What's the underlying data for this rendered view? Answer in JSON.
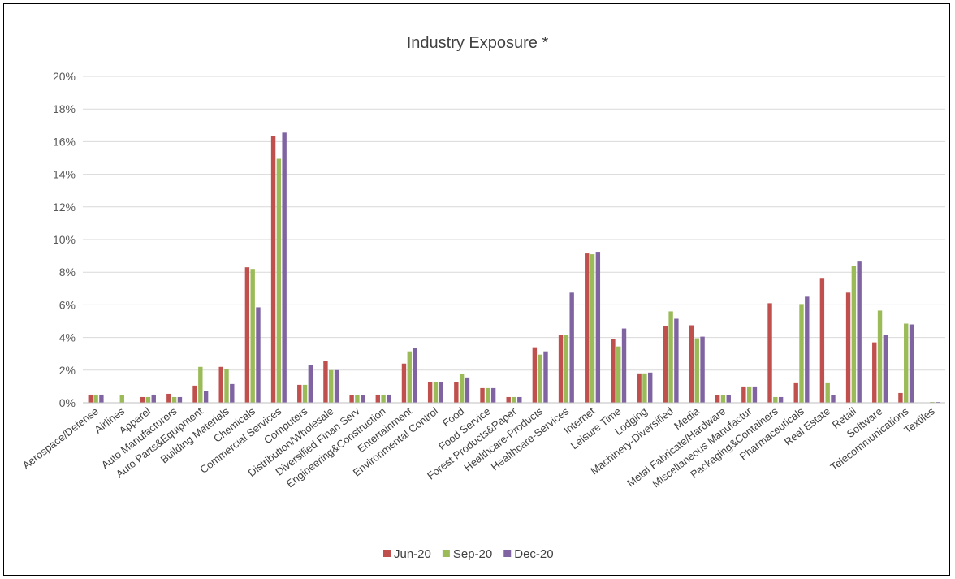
{
  "chart_data": {
    "type": "bar",
    "title": "Industry Exposure *",
    "xlabel": "",
    "ylabel": "",
    "ylim": [
      0,
      20
    ],
    "y_tick_values": [
      0,
      2,
      4,
      6,
      8,
      10,
      12,
      14,
      16,
      18,
      20
    ],
    "y_tick_labels": [
      "0%",
      "2%",
      "4%",
      "6%",
      "8%",
      "10%",
      "12%",
      "14%",
      "16%",
      "18%",
      "20%"
    ],
    "grid": true,
    "legend_position": "bottom",
    "categories": [
      "Aerospace/Defense",
      "Airlines",
      "Apparel",
      "Auto Manufacturers",
      "Auto Parts&Equipment",
      "Building Materials",
      "Chemicals",
      "Commercial Services",
      "Computers",
      "Distribution/Wholesale",
      "Diversified Finan Serv",
      "Engineering&Construction",
      "Entertainment",
      "Environmental Control",
      "Food",
      "Food Service",
      "Forest Products&Paper",
      "Healthcare-Products",
      "Healthcare-Services",
      "Internet",
      "Leisure Time",
      "Lodging",
      "Machinery-Diversified",
      "Media",
      "Metal Fabricate/Hardware",
      "Miscellaneous Manufactur",
      "Packaging&Containers",
      "Pharmaceuticals",
      "Real Estate",
      "Retail",
      "Software",
      "Telecommunications",
      "Textiles"
    ],
    "series": [
      {
        "name": "Jun-20",
        "color": "#c0504d",
        "values": [
          0.5,
          0.0,
          0.35,
          0.55,
          1.05,
          2.2,
          8.3,
          16.35,
          1.1,
          2.55,
          0.45,
          0.5,
          2.4,
          1.25,
          1.25,
          0.9,
          0.35,
          3.4,
          4.15,
          9.15,
          3.9,
          1.8,
          4.7,
          4.75,
          0.45,
          1.0,
          6.1,
          1.2,
          7.65,
          6.75,
          3.7,
          0.6,
          0.0
        ]
      },
      {
        "name": "Sep-20",
        "color": "#9bbb59",
        "values": [
          0.5,
          0.45,
          0.35,
          0.35,
          2.2,
          2.05,
          8.2,
          14.95,
          1.1,
          2.0,
          0.45,
          0.5,
          3.15,
          1.25,
          1.75,
          0.9,
          0.35,
          2.95,
          4.15,
          9.1,
          3.45,
          1.8,
          5.6,
          3.95,
          0.45,
          1.0,
          0.35,
          6.05,
          1.2,
          8.4,
          5.65,
          4.85,
          0.05
        ]
      },
      {
        "name": "Dec-20",
        "color": "#8064a2",
        "values": [
          0.5,
          0.0,
          0.5,
          0.35,
          0.7,
          1.15,
          5.85,
          16.55,
          2.3,
          2.0,
          0.45,
          0.5,
          3.35,
          1.25,
          1.55,
          0.9,
          0.35,
          3.15,
          6.75,
          9.25,
          4.55,
          1.85,
          5.15,
          4.05,
          0.45,
          1.0,
          0.35,
          6.5,
          0.45,
          8.65,
          4.15,
          4.8,
          0.05
        ]
      }
    ]
  }
}
